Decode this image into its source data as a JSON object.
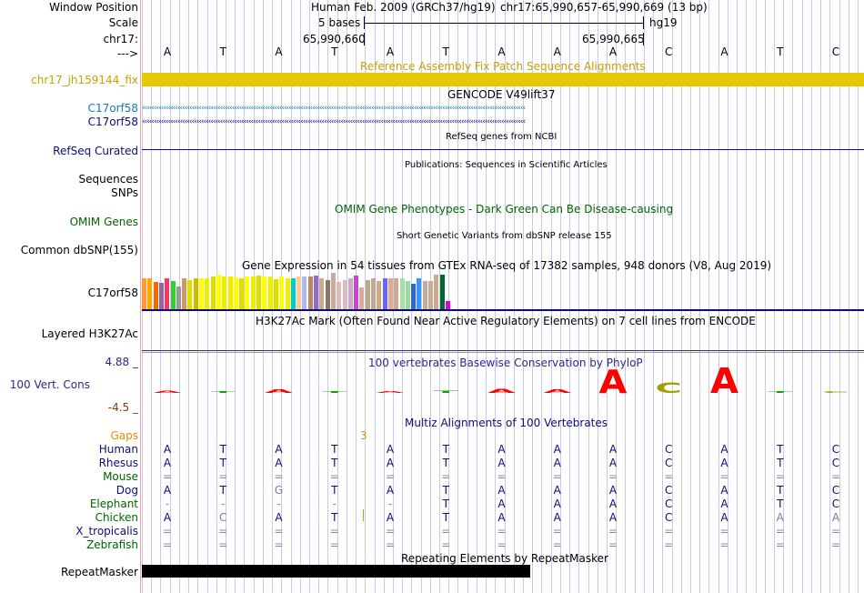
{
  "labels": {
    "window_position": "Window Position",
    "scale": "Scale",
    "chrom": "chr17:",
    "arrow": "--->",
    "fix": "chr17_jh159144_fix",
    "gencode1": "C17orf58",
    "gencode2": "C17orf58",
    "refseq": "RefSeq Curated",
    "sequences": "Sequences",
    "snps": "SNPs",
    "omim": "OMIM Genes",
    "dbsnp": "Common dbSNP(155)",
    "gtex": "C17orf58",
    "h3k27ac": "Layered H3K27Ac",
    "ymax": "4.88 _",
    "cons": "100 Vert. Cons",
    "ymin": "-4.5 _",
    "gaps": "Gaps",
    "species": [
      "Human",
      "Rhesus",
      "Mouse",
      "Dog",
      "Elephant",
      "Chicken",
      "X_tropicalis",
      "Zebrafish"
    ],
    "repeatmasker": "RepeatMasker"
  },
  "header": {
    "assembly": "Human Feb. 2009 (GRCh37/hg19)",
    "position": "chr17:65,990,657-65,990,669 (13 bp)",
    "scale_label": "5 bases",
    "scale_db": "hg19",
    "coord_left": "65,990,660",
    "coord_right": "65,990,665"
  },
  "bases": [
    "A",
    "T",
    "A",
    "T",
    "A",
    "T",
    "A",
    "A",
    "A",
    "C",
    "A",
    "T",
    "C"
  ],
  "tracks": {
    "fix_title": "Reference Assembly Fix Patch Sequence Alignments",
    "gencode_title": "GENCODE V49lift37",
    "refseq_title": "RefSeq genes from NCBI",
    "pubs_title": "Publications: Sequences in Scientific Articles",
    "omim_title": "OMIM Gene Phenotypes - Dark Green Can Be Disease-causing",
    "dbsnp_title": "Short Genetic Variants from dbSNP release 155",
    "gtex_title": "Gene Expression in 54 tissues from GTEx RNA-seq of 17382 samples, 948 donors (V8, Aug 2019)",
    "h3k27ac_title": "H3K27Ac Mark (Often Found Near Active Regulatory Elements) on 7 cell lines from ENCODE",
    "phylop_title": "100 vertebrates Basewise Conservation by PhyloP",
    "multiz_title": "Multiz Alignments of 100 Vertebrates",
    "gap_mark": "3",
    "rmsk_title": "Repeating Elements by RepeatMasker"
  },
  "colors": {
    "fix_bar": "#e6c800",
    "gencode": "#0c0c78",
    "refseq": "#0c0c78",
    "omim": "#006400",
    "grid": "#c8c8f0",
    "phylop_pos": "#ff0000",
    "phylop_c": "#a0a000",
    "gaps": "#ff9900",
    "rmsk": "#000000"
  },
  "gtex_values": [
    0.55,
    0.55,
    0.48,
    0.46,
    0.55,
    0.5,
    0.4,
    0.55,
    0.52,
    0.55,
    0.55,
    0.55,
    0.58,
    0.62,
    0.58,
    0.58,
    0.56,
    0.55,
    0.58,
    0.58,
    0.6,
    0.58,
    0.58,
    0.54,
    0.58,
    0.55,
    0.55,
    0.58,
    0.58,
    0.58,
    0.6,
    0.55,
    0.52,
    0.65,
    0.48,
    0.52,
    0.55,
    0.6,
    0.38,
    0.52,
    0.55,
    0.5,
    0.55,
    0.55,
    0.55,
    0.55,
    0.5,
    0.45,
    0.55,
    0.5,
    0.5,
    0.62,
    0.62,
    0.15
  ],
  "gtex_colors": [
    "#ff9933",
    "#ffaa00",
    "#ff6600",
    "#996699",
    "#ff3366",
    "#33cc33",
    "#999999",
    "#cc9966",
    "#dddd00",
    "#ccbb00",
    "#ffff00",
    "#eeee00",
    "#dddd00",
    "#ffff00",
    "#eeee00",
    "#eeee00",
    "#ffff00",
    "#dddd00",
    "#ffff00",
    "#eeee00",
    "#dddd00",
    "#ffff00",
    "#eeee00",
    "#dddd00",
    "#ffff00",
    "#eeee00",
    "#00cccc",
    "#ffcc99",
    "#aabbee",
    "#bb8866",
    "#9966cc",
    "#ccaa88",
    "#887766",
    "#ccaa99",
    "#ddbbbb",
    "#ddbbbb",
    "#ccaacc",
    "#cc44cc",
    "#ddaa99",
    "#bbaa88",
    "#bbaa99",
    "#ccaa88",
    "#6666ff",
    "#ddaa99",
    "#ccaa88",
    "#aaddaa",
    "#99dd99",
    "#3366cc",
    "#3399ff",
    "#ccaa99",
    "#ccaa99",
    "#ccaa88",
    "#006633",
    "#dd00dd"
  ],
  "multiz": [
    {
      "species": "Human",
      "bases": [
        "A",
        "T",
        "A",
        "T",
        "A",
        "T",
        "A",
        "A",
        "A",
        "C",
        "A",
        "T",
        "C"
      ]
    },
    {
      "species": "Rhesus",
      "bases": [
        "A",
        "T",
        "A",
        "T",
        "A",
        "T",
        "A",
        "A",
        "A",
        "C",
        "A",
        "T",
        "C"
      ]
    },
    {
      "species": "Mouse",
      "bases": [
        "=",
        "=",
        "=",
        "=",
        "=",
        "=",
        "=",
        "=",
        "=",
        "=",
        "=",
        "=",
        "="
      ]
    },
    {
      "species": "Dog",
      "bases": [
        "A",
        "T",
        "G",
        "T",
        "A",
        "T",
        "A",
        "A",
        "A",
        "C",
        "A",
        "T",
        "C"
      ]
    },
    {
      "species": "Elephant",
      "bases": [
        "-",
        "-",
        "-",
        "-",
        "-",
        "T",
        "A",
        "A",
        "A",
        "C",
        "A",
        "T",
        "C"
      ]
    },
    {
      "species": "Chicken",
      "bases": [
        "A",
        "C",
        "A",
        "T",
        "A",
        "T",
        "A",
        "A",
        "A",
        "C",
        "A",
        "A",
        "A"
      ]
    },
    {
      "species": "X_tropicalis",
      "bases": [
        "=",
        "=",
        "=",
        "=",
        "=",
        "=",
        "=",
        "=",
        "=",
        "=",
        "=",
        "=",
        "="
      ]
    },
    {
      "species": "Zebrafish",
      "bases": [
        "=",
        "=",
        "=",
        "=",
        "=",
        "=",
        "=",
        "=",
        "=",
        "=",
        "=",
        "=",
        "="
      ]
    }
  ]
}
